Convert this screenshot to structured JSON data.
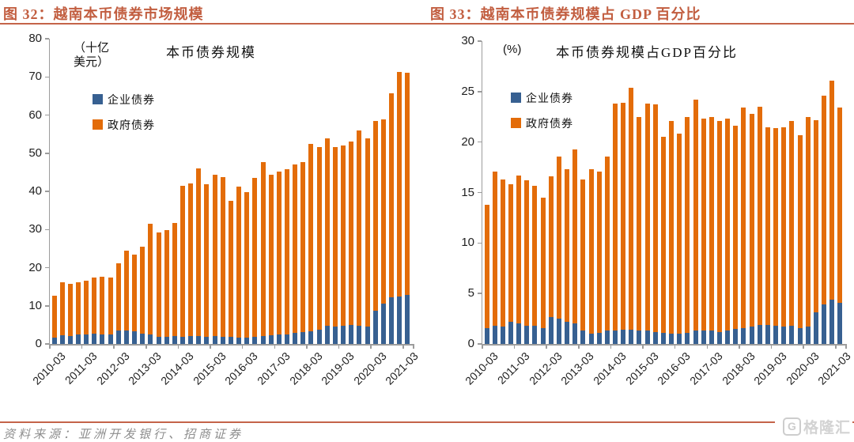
{
  "page": {
    "source_note": "资料来源：亚洲开发银行、招商证券",
    "watermark": {
      "g": "G",
      "text": "格隆汇"
    },
    "accent_color": "#C46449"
  },
  "chart_data": [
    {
      "type": "bar",
      "stacked": true,
      "figure_label": "图 32：越南本币债券市场规模",
      "inner_title": "本币债券规模",
      "unit_label_lines": [
        "（十亿",
        "美元）"
      ],
      "ylabel": "十亿美元",
      "ylim": [
        0,
        80
      ],
      "ytick_step": 10,
      "yticks": [
        "0",
        "10",
        "20",
        "30",
        "40",
        "50",
        "60",
        "70",
        "80"
      ],
      "grid": false,
      "legend_position": "upper-left-inside",
      "xtick_every": 4,
      "xtick_labels": [
        "2010-03",
        "2011-03",
        "2012-03",
        "2013-03",
        "2014-03",
        "2015-03",
        "2016-03",
        "2017-03",
        "2018-03",
        "2019-03",
        "2020-03",
        "2021-03"
      ],
      "categories": [
        "2010-03",
        "2010-06",
        "2010-09",
        "2010-12",
        "2011-03",
        "2011-06",
        "2011-09",
        "2011-12",
        "2012-03",
        "2012-06",
        "2012-09",
        "2012-12",
        "2013-03",
        "2013-06",
        "2013-09",
        "2013-12",
        "2014-03",
        "2014-06",
        "2014-09",
        "2014-12",
        "2015-03",
        "2015-06",
        "2015-09",
        "2015-12",
        "2016-03",
        "2016-06",
        "2016-09",
        "2016-12",
        "2017-03",
        "2017-06",
        "2017-09",
        "2017-12",
        "2018-03",
        "2018-06",
        "2018-09",
        "2018-12",
        "2019-03",
        "2019-06",
        "2019-09",
        "2019-12",
        "2020-03",
        "2020-06",
        "2020-09",
        "2020-12",
        "2021-03"
      ],
      "series": [
        {
          "name": "企业债券",
          "color": "#376091",
          "values": [
            1.7,
            2.2,
            2.1,
            2.4,
            2.4,
            2.6,
            2.4,
            2.4,
            3.6,
            3.5,
            3.3,
            2.7,
            2.5,
            1.8,
            1.8,
            2.0,
            1.9,
            2.0,
            2.0,
            1.9,
            2.0,
            1.9,
            1.8,
            1.7,
            1.7,
            1.8,
            2.0,
            2.2,
            2.4,
            2.4,
            2.8,
            3.1,
            3.3,
            3.7,
            4.7,
            4.5,
            4.7,
            4.9,
            4.7,
            4.5,
            8.7,
            10.6,
            12.2,
            12.5,
            12.8
          ]
        },
        {
          "name": "政府债券",
          "color": "#E36C09",
          "values": [
            10.9,
            13.9,
            13.6,
            13.8,
            14.2,
            14.8,
            15.3,
            15.1,
            17.6,
            20.9,
            20.2,
            22.8,
            28.9,
            27.4,
            28.0,
            29.8,
            39.5,
            40.1,
            44.1,
            39.9,
            42.3,
            41.9,
            35.8,
            39.5,
            38.0,
            41.7,
            45.7,
            42.1,
            42.7,
            43.3,
            44.3,
            44.6,
            49.2,
            48.0,
            49.2,
            47.1,
            47.3,
            48.2,
            51.2,
            49.3,
            49.8,
            48.2,
            53.4,
            58.8,
            58.2
          ]
        }
      ]
    },
    {
      "type": "bar",
      "stacked": true,
      "figure_label": "图 33：越南本币债券规模占 GDP 百分比",
      "inner_title": "本币债券规模占GDP百分比",
      "unit_label_lines": [
        "(%)"
      ],
      "ylabel": "%",
      "ylim": [
        0,
        30
      ],
      "ytick_step": 5,
      "yticks": [
        "0",
        "5",
        "10",
        "15",
        "20",
        "25",
        "30"
      ],
      "grid": false,
      "legend_position": "upper-left-inside",
      "xtick_every": 4,
      "xtick_labels": [
        "2010-03",
        "2011-03",
        "2012-03",
        "2013-03",
        "2014-03",
        "2015-03",
        "2016-03",
        "2017-03",
        "2018-03",
        "2019-03",
        "2020-03",
        "2021-03"
      ],
      "categories": [
        "2010-03",
        "2010-06",
        "2010-09",
        "2010-12",
        "2011-03",
        "2011-06",
        "2011-09",
        "2011-12",
        "2012-03",
        "2012-06",
        "2012-09",
        "2012-12",
        "2013-03",
        "2013-06",
        "2013-09",
        "2013-12",
        "2014-03",
        "2014-06",
        "2014-09",
        "2014-12",
        "2015-03",
        "2015-06",
        "2015-09",
        "2015-12",
        "2016-03",
        "2016-06",
        "2016-09",
        "2016-12",
        "2017-03",
        "2017-06",
        "2017-09",
        "2017-12",
        "2018-03",
        "2018-06",
        "2018-09",
        "2018-12",
        "2019-03",
        "2019-06",
        "2019-09",
        "2019-12",
        "2020-03",
        "2020-06",
        "2020-09",
        "2020-12",
        "2021-03"
      ],
      "series": [
        {
          "name": "企业债券",
          "color": "#376091",
          "values": [
            1.6,
            1.8,
            1.7,
            2.2,
            2.0,
            1.8,
            1.8,
            1.6,
            2.7,
            2.5,
            2.2,
            2.0,
            1.3,
            1.0,
            1.1,
            1.3,
            1.3,
            1.4,
            1.4,
            1.3,
            1.3,
            1.2,
            1.1,
            1.0,
            1.0,
            1.1,
            1.3,
            1.3,
            1.3,
            1.2,
            1.3,
            1.5,
            1.6,
            1.7,
            1.9,
            1.9,
            1.8,
            1.7,
            1.8,
            1.6,
            1.7,
            3.1,
            3.9,
            4.4,
            4.1
          ]
        },
        {
          "name": "政府债券",
          "color": "#E36C09",
          "values": [
            12.2,
            15.3,
            14.6,
            13.6,
            14.7,
            14.4,
            13.9,
            12.9,
            13.9,
            16.1,
            15.1,
            17.3,
            15.0,
            16.3,
            16.0,
            17.3,
            22.5,
            22.5,
            24.0,
            21.2,
            22.5,
            22.5,
            19.4,
            21.1,
            19.8,
            21.4,
            22.9,
            21.0,
            21.2,
            20.9,
            21.0,
            20.1,
            21.8,
            21.1,
            21.6,
            19.6,
            19.6,
            19.8,
            20.3,
            19.1,
            20.8,
            19.1,
            20.7,
            21.7,
            19.3
          ]
        }
      ]
    }
  ]
}
